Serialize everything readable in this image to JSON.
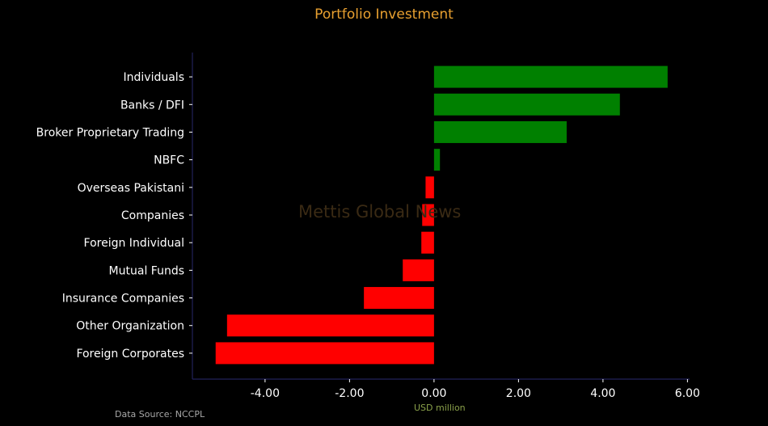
{
  "chart_data": {
    "type": "bar",
    "orientation": "horizontal",
    "title": "Portfolio Investment",
    "xlabel": "USD million",
    "ylabel": "",
    "categories": [
      "Individuals",
      "Banks / DFI",
      "Broker Proprietary Trading",
      "NBFC",
      "Overseas Pakistani",
      "Companies",
      "Foreign Individual",
      "Mutual Funds",
      "Insurance Companies",
      "Other Organization",
      "Foreign Corporates"
    ],
    "values": [
      5.53,
      4.4,
      3.14,
      0.14,
      -0.2,
      -0.28,
      -0.3,
      -0.74,
      -1.66,
      -4.9,
      -5.17
    ],
    "xlim": [
      -5.72,
      6.05
    ],
    "xticks": [
      -4,
      -2,
      0,
      2,
      4,
      6
    ],
    "xtick_labels": [
      "-4.00",
      "-2.00",
      "0.00",
      "2.00",
      "4.00",
      "6.00"
    ],
    "grid": false,
    "colors": {
      "positive": "#008000",
      "negative": "#ff0000",
      "axis": "#22225a",
      "text": "#ffffff"
    }
  },
  "watermark": "Mettis Global News",
  "source": "Data Source: NCCPL"
}
